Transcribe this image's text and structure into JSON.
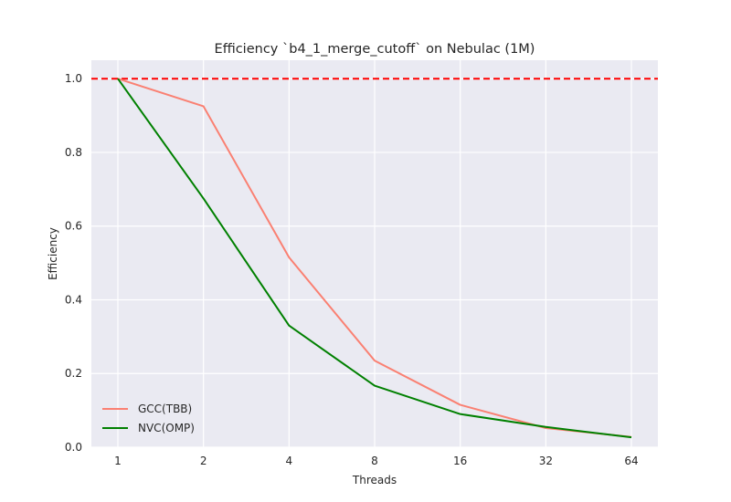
{
  "chart_data": {
    "type": "line",
    "title": "Efficiency `b4_1_merge_cutoff` on Nebulac (1M)",
    "xlabel": "Threads",
    "ylabel": "Efficiency",
    "x_scale": "log2",
    "x": [
      1,
      2,
      4,
      8,
      16,
      32,
      64
    ],
    "x_tick_labels": [
      "1",
      "2",
      "4",
      "8",
      "16",
      "32",
      "64"
    ],
    "ylim": [
      0.0,
      1.05
    ],
    "y_ticks": [
      0.0,
      0.2,
      0.4,
      0.6,
      0.8,
      1.0
    ],
    "y_tick_labels": [
      "0.0",
      "0.2",
      "0.4",
      "0.6",
      "0.8",
      "1.0"
    ],
    "grid": true,
    "legend_position": "lower-left",
    "reference_line": {
      "y": 1.0,
      "style": "dashed",
      "color": "#ff0000"
    },
    "series": [
      {
        "name": "GCC(TBB)",
        "color": "#fa8072",
        "values": [
          1.0,
          0.925,
          0.515,
          0.235,
          0.115,
          0.052,
          0.028
        ]
      },
      {
        "name": "NVC(OMP)",
        "color": "#008000",
        "values": [
          1.0,
          0.675,
          0.33,
          0.167,
          0.09,
          0.055,
          0.027
        ]
      }
    ]
  }
}
